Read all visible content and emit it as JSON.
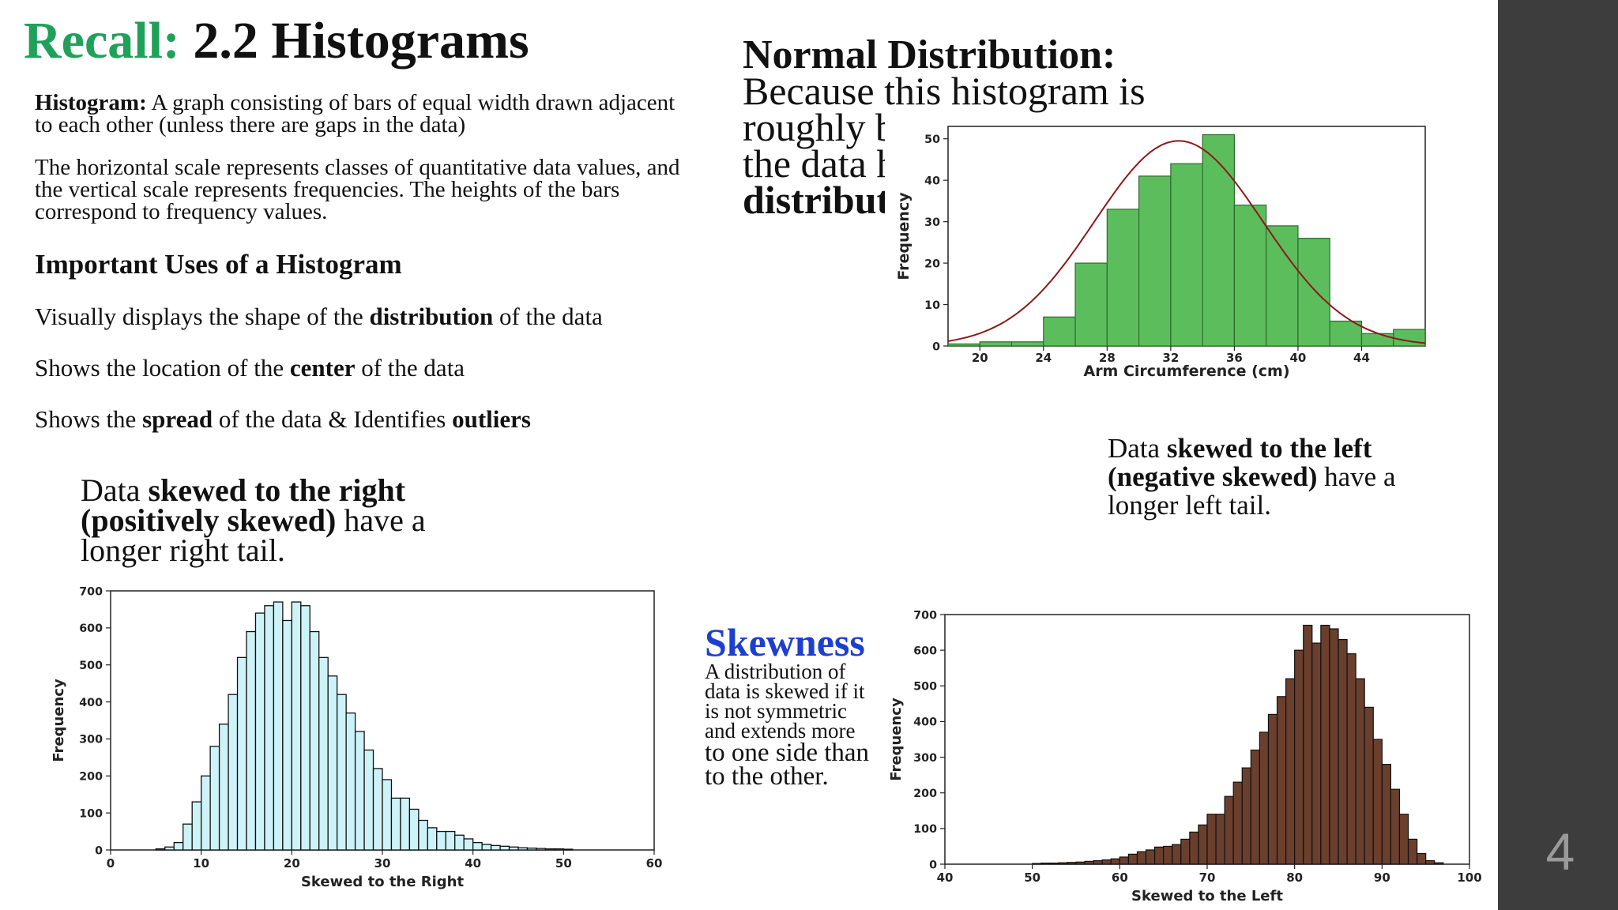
{
  "title": {
    "recall": "Recall:",
    "main": "2.2 Histograms"
  },
  "definition": {
    "term": "Histogram:",
    "text": "A graph consisting of bars of equal width drawn adjacent to each other (unless there are gaps in the data)"
  },
  "scales_text": "The horizontal scale represents classes of quantitative data values, and the vertical scale represents frequencies. The heights of the bars correspond to frequency values.",
  "uses": {
    "heading": "Important Uses of a Histogram",
    "u1_pre": "Visually displays the shape of the ",
    "u1_bold": "distribution",
    "u1_post": " of the data",
    "u2_pre": "Shows the location of the ",
    "u2_bold": "center",
    "u2_post": " of the data",
    "u3_pre": "Shows the ",
    "u3_bold": "spread",
    "u3_mid": " of the data & Identifies ",
    "u3_bold2": "outliers"
  },
  "right_skew_text": {
    "pre": "Data ",
    "bold": "skewed to the right (positively skewed)",
    "post": " have a longer right tail."
  },
  "left_skew_text": {
    "pre": "Data ",
    "bold": "skewed to the left (negative skewed)",
    "post": " have a longer left tail."
  },
  "normal": {
    "title": "Normal Distribution:",
    "line1": "Because this histogram is",
    "line2": "roughly b",
    "line3": "the data h",
    "line4": "distribut"
  },
  "skewness": {
    "title": "Skewness",
    "small": "A distribution of data is skewed if it is not symmetric and extends more ",
    "large": "to one side than to the other."
  },
  "slide_number": "4",
  "chart_data": [
    {
      "id": "normal",
      "type": "bar",
      "xlabel": "Arm Circumference (cm)",
      "ylabel": "Frequency",
      "xlim": [
        18,
        48
      ],
      "ylim": [
        0,
        53
      ],
      "xticks": [
        20,
        24,
        28,
        32,
        36,
        40,
        44
      ],
      "yticks": [
        0,
        10,
        20,
        30,
        40,
        50
      ],
      "bin_width": 2,
      "bin_starts": [
        18,
        20,
        22,
        24,
        26,
        28,
        30,
        32,
        34,
        36,
        38,
        40,
        42,
        44,
        46
      ],
      "values": [
        0.5,
        1,
        1,
        7,
        20,
        33,
        41,
        44,
        51,
        34,
        29,
        26,
        6,
        3,
        4
      ],
      "fill": "#5cbd5c",
      "curve": {
        "type": "normal",
        "mean": 32.5,
        "sd": 5.3,
        "peak": 49.5,
        "color": "#8b1a1a"
      }
    },
    {
      "id": "right",
      "type": "bar",
      "xlabel": "Skewed to the Right",
      "ylabel": "Frequency",
      "xlim": [
        0,
        60
      ],
      "ylim": [
        0,
        700
      ],
      "xticks": [
        0,
        10,
        20,
        30,
        40,
        50,
        60
      ],
      "yticks": [
        0,
        100,
        200,
        300,
        400,
        500,
        600,
        700
      ],
      "bin_width": 1,
      "bin_start": 5,
      "values": [
        3,
        8,
        20,
        70,
        130,
        200,
        280,
        340,
        420,
        520,
        590,
        640,
        660,
        670,
        620,
        670,
        660,
        590,
        520,
        470,
        420,
        370,
        320,
        270,
        220,
        190,
        140,
        140,
        110,
        80,
        60,
        50,
        50,
        40,
        30,
        20,
        15,
        12,
        10,
        8,
        6,
        5,
        4,
        3,
        3,
        2
      ]
    },
    {
      "id": "left",
      "type": "bar",
      "xlabel": "Skewed to the Left",
      "ylabel": "Frequency",
      "xlim": [
        40,
        100
      ],
      "ylim": [
        0,
        700
      ],
      "xticks": [
        40,
        50,
        60,
        70,
        80,
        90,
        100
      ],
      "yticks": [
        0,
        100,
        200,
        300,
        400,
        500,
        600,
        700
      ],
      "bin_width": 1,
      "bin_start": 50,
      "values": [
        2,
        3,
        3,
        4,
        5,
        6,
        8,
        10,
        12,
        15,
        20,
        28,
        35,
        40,
        48,
        50,
        55,
        70,
        90,
        110,
        140,
        140,
        190,
        230,
        270,
        320,
        370,
        420,
        470,
        520,
        600,
        670,
        620,
        670,
        660,
        630,
        590,
        520,
        440,
        350,
        280,
        210,
        140,
        70,
        30,
        10,
        4
      ]
    }
  ]
}
